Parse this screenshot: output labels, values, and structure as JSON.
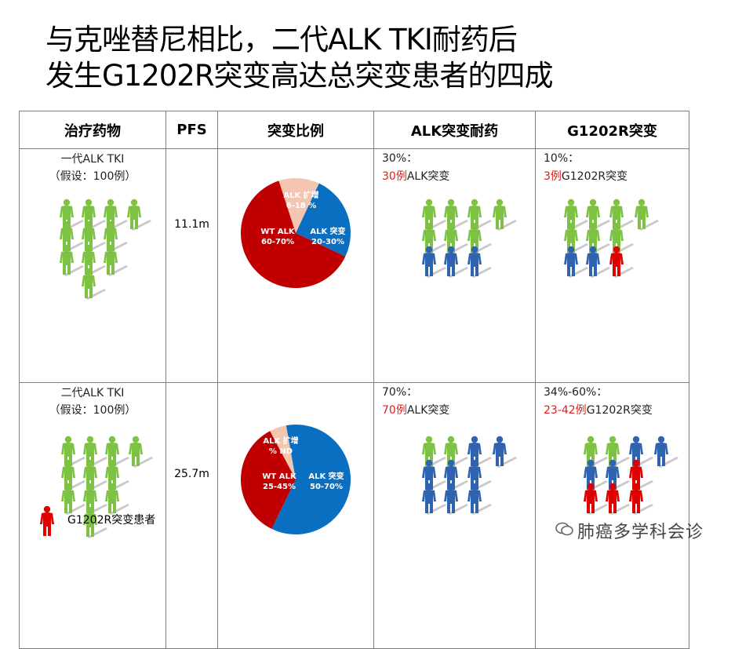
{
  "title": {
    "line1": "与克唑替尼相比，二代ALK TKI耐药后",
    "line2": "发生G1202R突变高达总突变患者的四成"
  },
  "table": {
    "headers": [
      "治疗药物",
      "PFS",
      "突变比例",
      "ALK突变耐药",
      "G1202R突变"
    ],
    "rows": [
      {
        "drug_line1": "一代ALK TKI",
        "drug_line2": "（假设：100例）",
        "pfs": "11.1m",
        "pie": {
          "slices": [
            {
              "label": "ALK 扩增",
              "range": "6-18 %",
              "value": 12,
              "color": "#f4c6b2"
            },
            {
              "label": "ALK 突变",
              "range": "20-30%",
              "value": 25,
              "color": "#0b6fc1"
            },
            {
              "label": "WT ALK",
              "range": "60-70%",
              "value": 63,
              "color": "#c00000"
            }
          ]
        },
        "alk_pct": "30%：",
        "alk_count": "30例",
        "alk_text": "ALK突变",
        "g_pct": "10%：",
        "g_count": "3例",
        "g_text": "G1202R突变"
      },
      {
        "drug_line1": "二代ALK TKI",
        "drug_line2": "（假设：100例）",
        "pfs": "25.7m",
        "pie": {
          "slices": [
            {
              "label": "ALK 扩增",
              "range": "% ND",
              "value": 5,
              "color": "#f4c6b2"
            },
            {
              "label": "ALK 突变",
              "range": "50-70%",
              "value": 60,
              "color": "#0b6fc1"
            },
            {
              "label": "WT ALK",
              "range": "25-45%",
              "value": 35,
              "color": "#c00000"
            }
          ]
        },
        "alk_pct": "70%：",
        "alk_count": "70例",
        "alk_text": "ALK突变",
        "g_pct": "34%-60%：",
        "g_count": "23-42例",
        "g_text": "G1202R突变"
      }
    ]
  },
  "legend": {
    "label": "G1202R突变患者"
  },
  "watermark": {
    "text": "肺癌多学科会诊"
  },
  "colors": {
    "green": "#7dc242",
    "blue": "#2f63b0",
    "red": "#e00000",
    "shadow": "#c9c9c9"
  }
}
